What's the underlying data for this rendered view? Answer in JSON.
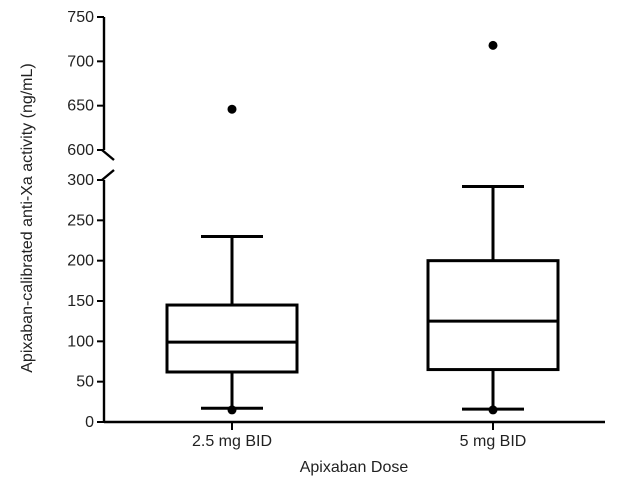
{
  "chart_data": {
    "type": "box",
    "xlabel": "Apixaban Dose",
    "ylabel": "Apixaban-calibrated anti-Xa activity (ng/mL)",
    "categories": [
      "2.5 mg BID",
      "5 mg BID"
    ],
    "y_axis": {
      "broken": true,
      "lower_segment": [
        0,
        300
      ],
      "upper_segment": [
        600,
        750
      ],
      "lower_ticks": [
        0,
        50,
        100,
        150,
        200,
        250,
        300
      ],
      "upper_ticks": [
        600,
        650,
        700,
        750
      ]
    },
    "boxes": [
      {
        "category": "2.5 mg BID",
        "whisker_low": 17,
        "q1": 62,
        "median": 99,
        "q3": 145,
        "whisker_high": 230,
        "outliers": [
          15,
          646
        ]
      },
      {
        "category": "5 mg BID",
        "whisker_low": 16,
        "q1": 65,
        "median": 125,
        "q3": 200,
        "whisker_high": 292,
        "outliers": [
          15,
          718
        ]
      }
    ],
    "grid": false,
    "legend": "none"
  }
}
